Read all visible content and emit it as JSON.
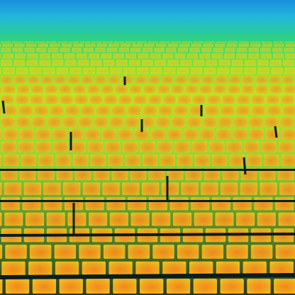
{
  "image": {
    "subject": "thermal-image-solar-array",
    "palette": {
      "sky_far": "#1a8fe0",
      "sky_near": "#22c7c7",
      "ground_far": "#2fd37a",
      "ground_mid": "#9ee02a",
      "panel_cool": "#d9e81c",
      "panel_warm": "#f6b21f",
      "panel_hot": "#f58a1c",
      "gap": "#0d1b22",
      "gap_green": "#26c463"
    }
  }
}
